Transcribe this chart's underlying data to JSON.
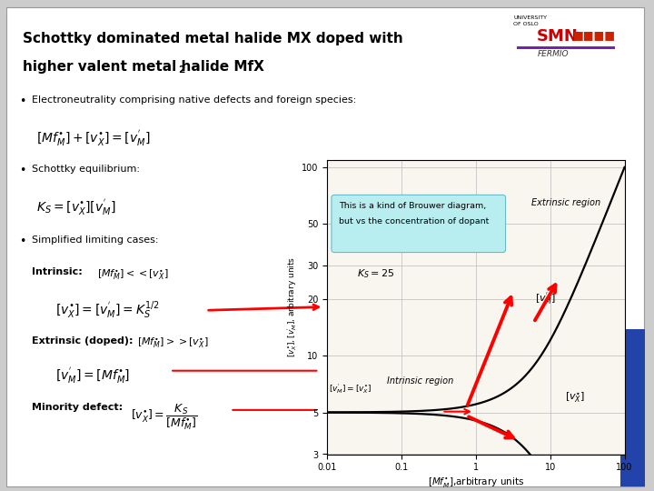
{
  "title_line1": "Schottky dominated metal halide MX doped with",
  "title_line2": "higher valent metal halide MfX",
  "title_sub2": "2",
  "annotation_text1": "This is a kind of Brouwer diagram,",
  "annotation_text2": "but vs the concentration of dopant",
  "ks_label": "$K_S=25$",
  "extrinsic_label": "Extrinsic region",
  "intrinsic_label": "Intrinsic region",
  "vM_label": "$[v_M^{'}]$",
  "vX_label": "$[v_X^{\\bullet}]$",
  "vMvX_label": "$[v_M^{'}]=[v_X^{\\bullet}]$",
  "xlabel": "$[Mf_M^{\\bullet}]$,arbitrary units",
  "ylabel": "$[v_X^{\\bullet}],[v_M^{'}]$, arbitrary units",
  "yticks": [
    3,
    5,
    10,
    20,
    30,
    50,
    100
  ],
  "xtick_vals": [
    0.01,
    0.1,
    1,
    10,
    100
  ],
  "xtick_labels": [
    "0.01",
    "0.1",
    "1",
    "10",
    "100"
  ],
  "KS": 25,
  "slide_bg": "#ffffff",
  "outer_bg": "#cccccc",
  "plot_bg": "#f8f6ee",
  "ann_box_color": "#b8eef0",
  "blue_bar_color": "#2244aa"
}
